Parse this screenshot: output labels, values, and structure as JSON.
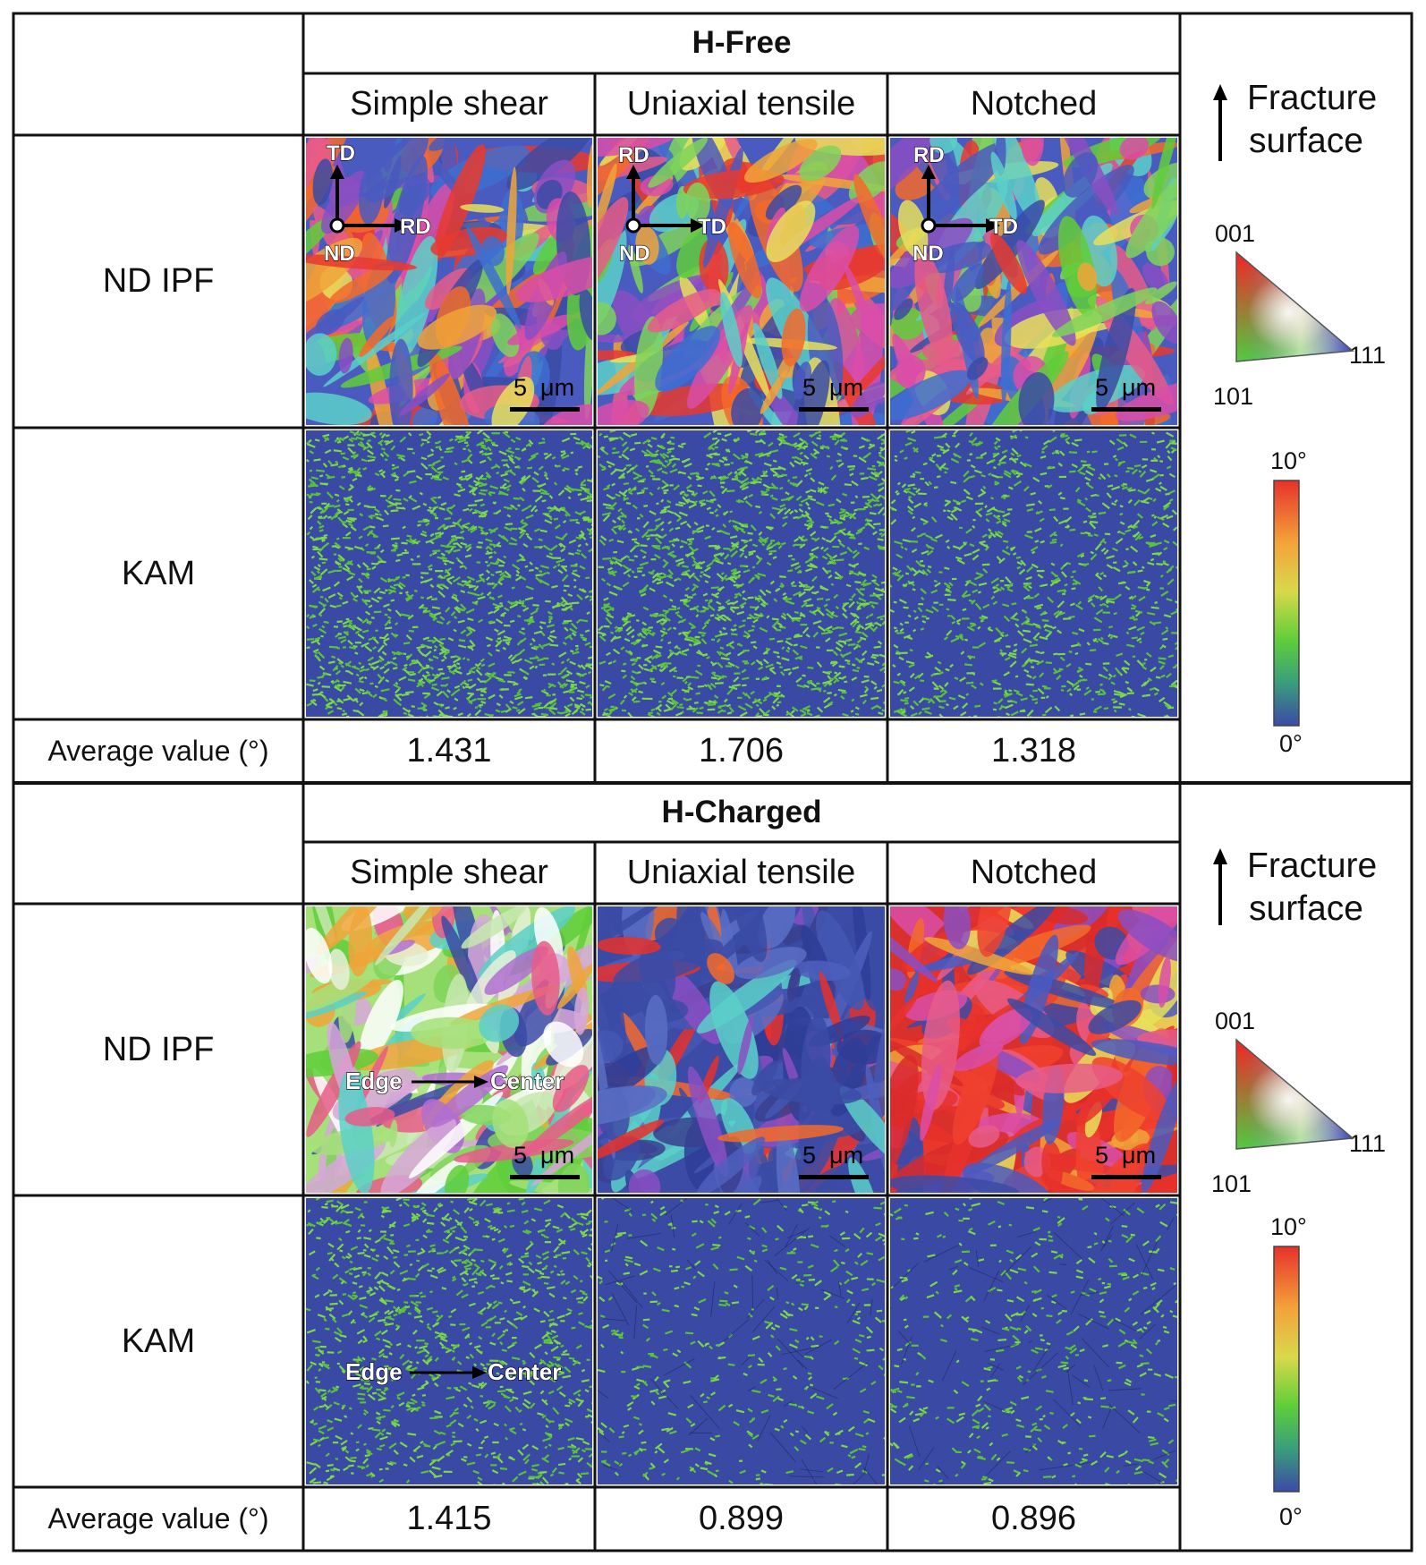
{
  "sections": [
    {
      "header": "H-Free",
      "columns": [
        "Simple shear",
        "Uniaxial tensile",
        "Notched"
      ],
      "rows": [
        "ND IPF",
        "KAM",
        "Average value (°)"
      ],
      "averages": [
        "1.431",
        "1.706",
        "1.318"
      ],
      "scale_bars": [
        "5  μm",
        "5  μm",
        "5  μm"
      ],
      "axes": [
        {
          "up": "TD",
          "right": "RD",
          "origin": "ND"
        },
        {
          "up": "RD",
          "right": "TD",
          "origin": "ND"
        },
        {
          "up": "RD",
          "right": "TD",
          "origin": "ND"
        }
      ],
      "legend": {
        "arrow_label": [
          "Fracture",
          "surface"
        ],
        "ipf_corners": {
          "top": "001",
          "left": "101",
          "right": "111"
        },
        "kam_scale": {
          "max": "10°",
          "min": "0°"
        }
      }
    },
    {
      "header": "H-Charged",
      "columns": [
        "Simple shear",
        "Uniaxial tensile",
        "Notched"
      ],
      "rows": [
        "ND IPF",
        "KAM",
        "Average value (°)"
      ],
      "averages": [
        "1.415",
        "0.899",
        "0.896"
      ],
      "scale_bars": [
        "5  μm",
        "5  μm",
        "5  μm"
      ],
      "annotations": {
        "edge": "Edge",
        "center": "Center"
      },
      "legend": {
        "arrow_label": [
          "Fracture",
          "surface"
        ],
        "ipf_corners": {
          "top": "001",
          "left": "101",
          "right": "111"
        },
        "kam_scale": {
          "max": "10°",
          "min": "0°"
        }
      }
    }
  ],
  "colors": {
    "border": "#111111",
    "ipf_red": "#e8312b",
    "ipf_green": "#5fce3a",
    "ipf_blue": "#3b4ba6",
    "kam_base": "#3a49a3",
    "kam_speckle": "#58c23a"
  },
  "map_descriptions": {
    "hfree_ipf": [
      "multicolor",
      "multicolor",
      "multicolor"
    ],
    "hfree_kam": [
      "green-dense",
      "green-dense",
      "green-medium"
    ],
    "hcharged_ipf": [
      "green-dominant",
      "blue-dominant",
      "red-dominant"
    ],
    "hcharged_kam": [
      "green-medium",
      "blue-sparse",
      "blue-sparse"
    ]
  }
}
